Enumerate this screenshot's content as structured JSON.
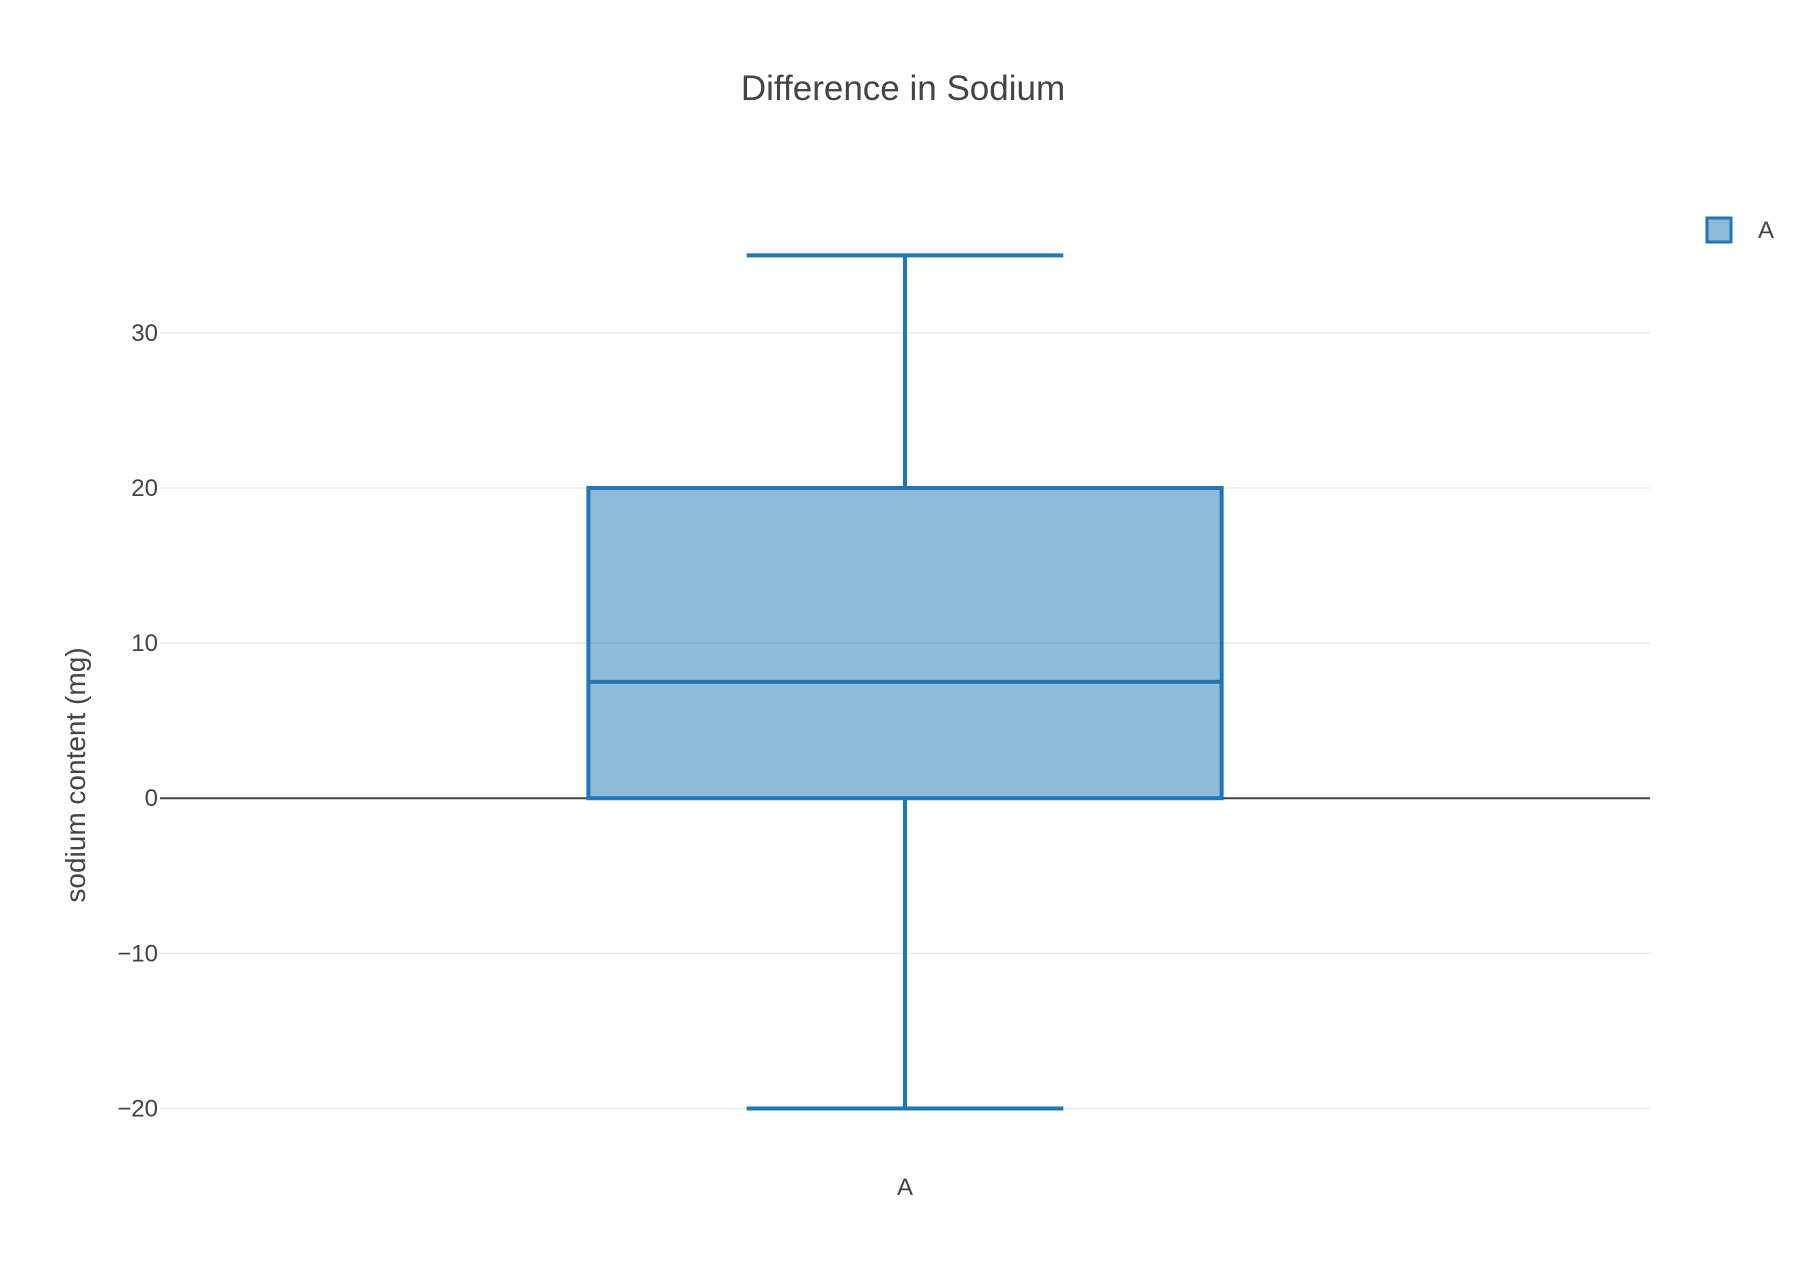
{
  "chart_data": {
    "type": "box",
    "title": "Difference in Sodium",
    "xlabel": "",
    "ylabel": "sodium content (mg)",
    "categories": [
      "A"
    ],
    "series": [
      {
        "name": "A",
        "category": "A",
        "min": -20,
        "q1": 0,
        "median": 7.5,
        "q3": 20,
        "max": 35
      }
    ],
    "ylim": [
      -23,
      40.5
    ],
    "yticks": [
      -20,
      -10,
      0,
      10,
      20,
      30
    ],
    "ytick_labels": [
      "−20",
      "−10",
      "0",
      "10",
      "20",
      "30"
    ],
    "grid": true,
    "zeroline": true,
    "legend": {
      "position": "top-right",
      "entries": [
        "A"
      ]
    },
    "colors": {
      "line": "#1f77b4",
      "fill": "#1f77b4",
      "fill_opacity": 0.5,
      "grid": "#e6e6e6",
      "zeroline": "#444444",
      "text": "#444444"
    }
  }
}
